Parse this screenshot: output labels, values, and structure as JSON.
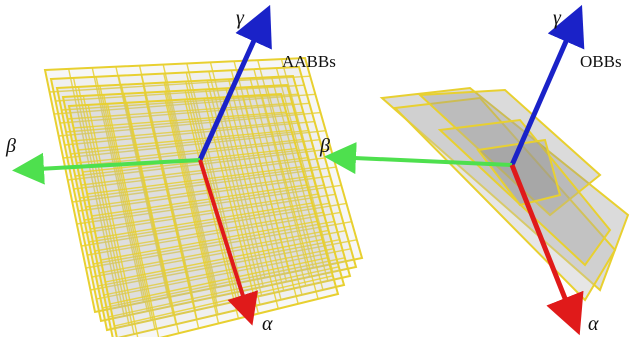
{
  "panels": [
    {
      "label": "AABBs",
      "axes": {
        "gamma": "γ",
        "beta": "β",
        "alpha": "α"
      }
    },
    {
      "label": "OBBs",
      "axes": {
        "gamma": "γ",
        "beta": "β",
        "alpha": "α"
      }
    }
  ]
}
